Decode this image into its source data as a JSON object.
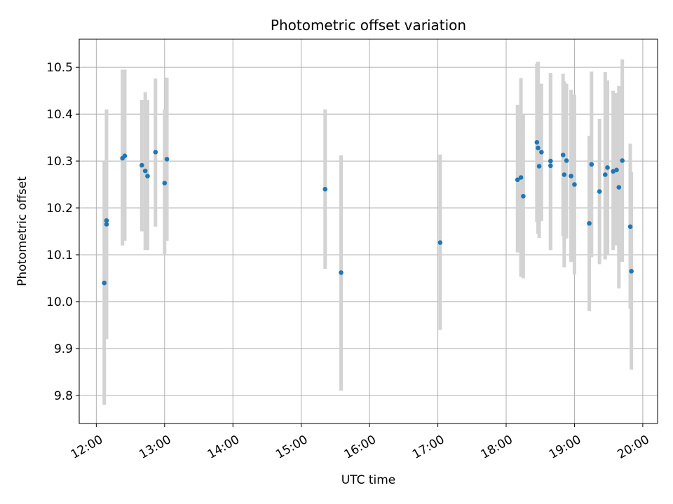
{
  "chart_data": {
    "type": "scatter",
    "title": "Photometric offset variation",
    "xlabel": "UTC time",
    "ylabel": "Photometric offset",
    "xlim": [
      "11:45",
      "20:13"
    ],
    "ylim": [
      9.74,
      10.56
    ],
    "grid": true,
    "x_ticks": [
      "12:00",
      "13:00",
      "14:00",
      "15:00",
      "16:00",
      "17:00",
      "18:00",
      "19:00",
      "20:00"
    ],
    "y_ticks": [
      9.8,
      9.9,
      10.0,
      10.1,
      10.2,
      10.3,
      10.4,
      10.5
    ],
    "y_tick_labels": [
      "9.8",
      "9.9",
      "10.0",
      "10.1",
      "10.2",
      "10.3",
      "10.4",
      "10.5"
    ],
    "colors": {
      "points": "#1f77b4",
      "error_bars": "#d3d3d3",
      "grid": "#b0b0b0"
    },
    "series": [
      {
        "points": [
          {
            "t": "12:07",
            "y": 10.04,
            "ylo": 9.78,
            "yhi": 10.3
          },
          {
            "t": "12:09",
            "y": 10.165,
            "ylo": 9.92,
            "yhi": 10.41
          },
          {
            "t": "12:09",
            "y": 10.173,
            "ylo": 9.94,
            "yhi": 10.4
          },
          {
            "t": "12:23",
            "y": 10.306,
            "ylo": 10.12,
            "yhi": 10.495
          },
          {
            "t": "12:25",
            "y": 10.311,
            "ylo": 10.13,
            "yhi": 10.495
          },
          {
            "t": "12:40",
            "y": 10.291,
            "ylo": 10.15,
            "yhi": 10.43
          },
          {
            "t": "12:43",
            "y": 10.279,
            "ylo": 10.11,
            "yhi": 10.447
          },
          {
            "t": "12:45",
            "y": 10.268,
            "ylo": 10.11,
            "yhi": 10.43
          },
          {
            "t": "12:52",
            "y": 10.319,
            "ylo": 10.16,
            "yhi": 10.476
          },
          {
            "t": "13:00",
            "y": 10.253,
            "ylo": 10.1,
            "yhi": 10.41
          },
          {
            "t": "13:02",
            "y": 10.304,
            "ylo": 10.13,
            "yhi": 10.478
          },
          {
            "t": "15:21",
            "y": 10.24,
            "ylo": 10.07,
            "yhi": 10.41
          },
          {
            "t": "15:35",
            "y": 10.062,
            "ylo": 9.81,
            "yhi": 10.312
          },
          {
            "t": "17:02",
            "y": 10.126,
            "ylo": 9.94,
            "yhi": 10.314
          },
          {
            "t": "18:10",
            "y": 10.26,
            "ylo": 10.105,
            "yhi": 10.42
          },
          {
            "t": "18:13",
            "y": 10.265,
            "ylo": 10.053,
            "yhi": 10.477
          },
          {
            "t": "18:15",
            "y": 10.225,
            "ylo": 10.05,
            "yhi": 10.4
          },
          {
            "t": "18:27",
            "y": 10.34,
            "ylo": 10.17,
            "yhi": 10.508
          },
          {
            "t": "18:28",
            "y": 10.328,
            "ylo": 10.145,
            "yhi": 10.512
          },
          {
            "t": "18:29",
            "y": 10.289,
            "ylo": 10.136,
            "yhi": 10.44
          },
          {
            "t": "18:31",
            "y": 10.319,
            "ylo": 10.172,
            "yhi": 10.465
          },
          {
            "t": "18:39",
            "y": 10.29,
            "ylo": 10.11,
            "yhi": 10.488
          },
          {
            "t": "18:39",
            "y": 10.3,
            "ylo": 10.11,
            "yhi": 10.488
          },
          {
            "t": "18:50",
            "y": 10.313,
            "ylo": 10.14,
            "yhi": 10.486
          },
          {
            "t": "18:51",
            "y": 10.271,
            "ylo": 10.073,
            "yhi": 10.47
          },
          {
            "t": "18:53",
            "y": 10.301,
            "ylo": 10.135,
            "yhi": 10.465
          },
          {
            "t": "18:57",
            "y": 10.268,
            "ylo": 10.085,
            "yhi": 10.452
          },
          {
            "t": "19:00",
            "y": 10.25,
            "ylo": 10.058,
            "yhi": 10.442
          },
          {
            "t": "19:13",
            "y": 10.167,
            "ylo": 9.98,
            "yhi": 10.354
          },
          {
            "t": "19:15",
            "y": 10.293,
            "ylo": 10.095,
            "yhi": 10.491
          },
          {
            "t": "19:22",
            "y": 10.235,
            "ylo": 10.08,
            "yhi": 10.39
          },
          {
            "t": "19:27",
            "y": 10.271,
            "ylo": 10.09,
            "yhi": 10.49
          },
          {
            "t": "19:29",
            "y": 10.286,
            "ylo": 10.1,
            "yhi": 10.472
          },
          {
            "t": "19:34",
            "y": 10.278,
            "ylo": 10.11,
            "yhi": 10.45
          },
          {
            "t": "19:37",
            "y": 10.281,
            "ylo": 10.12,
            "yhi": 10.445
          },
          {
            "t": "19:39",
            "y": 10.244,
            "ylo": 10.028,
            "yhi": 10.46
          },
          {
            "t": "19:42",
            "y": 10.301,
            "ylo": 10.085,
            "yhi": 10.517
          },
          {
            "t": "19:49",
            "y": 10.16,
            "ylo": 9.985,
            "yhi": 10.337
          },
          {
            "t": "19:50",
            "y": 10.065,
            "ylo": 9.855,
            "yhi": 10.276
          }
        ]
      }
    ]
  }
}
